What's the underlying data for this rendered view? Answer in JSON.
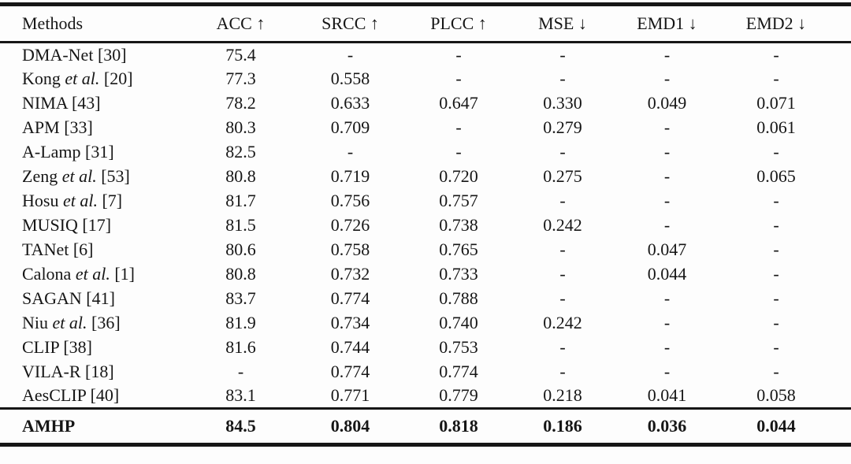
{
  "colors": {
    "ink": "#161616",
    "paper": "#fdfdfd"
  },
  "table": {
    "columns": [
      {
        "label": "Methods"
      },
      {
        "label": "ACC ↑"
      },
      {
        "label": "SRCC ↑"
      },
      {
        "label": "PLCC ↑"
      },
      {
        "label": "MSE ↓"
      },
      {
        "label": "EMD1 ↓"
      },
      {
        "label": "EMD2 ↓"
      }
    ],
    "rows": [
      {
        "method": {
          "pre": "DMA-Net",
          "italic": "",
          "post": " [30]"
        },
        "values": [
          "75.4",
          "-",
          "-",
          "-",
          "-",
          "-"
        ]
      },
      {
        "method": {
          "pre": "Kong ",
          "italic": "et al.",
          "post": " [20]"
        },
        "values": [
          "77.3",
          "0.558",
          "-",
          "-",
          "-",
          "-"
        ]
      },
      {
        "method": {
          "pre": "NIMA",
          "italic": "",
          "post": " [43]"
        },
        "values": [
          "78.2",
          "0.633",
          "0.647",
          "0.330",
          "0.049",
          "0.071"
        ]
      },
      {
        "method": {
          "pre": "APM",
          "italic": "",
          "post": " [33]"
        },
        "values": [
          "80.3",
          "0.709",
          "-",
          "0.279",
          "-",
          "0.061"
        ]
      },
      {
        "method": {
          "pre": "A-Lamp",
          "italic": "",
          "post": " [31]"
        },
        "values": [
          "82.5",
          "-",
          "-",
          "-",
          "-",
          "-"
        ]
      },
      {
        "method": {
          "pre": "Zeng ",
          "italic": "et al.",
          "post": " [53]"
        },
        "values": [
          "80.8",
          "0.719",
          "0.720",
          "0.275",
          "-",
          "0.065"
        ]
      },
      {
        "method": {
          "pre": "Hosu ",
          "italic": "et al.",
          "post": " [7]"
        },
        "values": [
          "81.7",
          "0.756",
          "0.757",
          "-",
          "-",
          "-"
        ]
      },
      {
        "method": {
          "pre": "MUSIQ",
          "italic": "",
          "post": " [17]"
        },
        "values": [
          "81.5",
          "0.726",
          "0.738",
          "0.242",
          "-",
          "-"
        ]
      },
      {
        "method": {
          "pre": "TANet",
          "italic": "",
          "post": " [6]"
        },
        "values": [
          "80.6",
          "0.758",
          "0.765",
          "-",
          "0.047",
          "-"
        ]
      },
      {
        "method": {
          "pre": "Calona ",
          "italic": "et al.",
          "post": " [1]"
        },
        "values": [
          "80.8",
          "0.732",
          "0.733",
          "-",
          "0.044",
          "-"
        ]
      },
      {
        "method": {
          "pre": "SAGAN",
          "italic": "",
          "post": " [41]"
        },
        "values": [
          "83.7",
          "0.774",
          "0.788",
          "-",
          "-",
          "-"
        ]
      },
      {
        "method": {
          "pre": "Niu ",
          "italic": "et al.",
          "post": " [36]"
        },
        "values": [
          "81.9",
          "0.734",
          "0.740",
          "0.242",
          "-",
          "-"
        ]
      },
      {
        "method": {
          "pre": "CLIP",
          "italic": "",
          "post": " [38]"
        },
        "values": [
          "81.6",
          "0.744",
          "0.753",
          "-",
          "-",
          "-"
        ]
      },
      {
        "method": {
          "pre": "VILA-R",
          "italic": "",
          "post": " [18]"
        },
        "values": [
          "-",
          "0.774",
          "0.774",
          "-",
          "-",
          "-"
        ]
      },
      {
        "method": {
          "pre": "AesCLIP",
          "italic": "",
          "post": " [40]"
        },
        "values": [
          "83.1",
          "0.771",
          "0.779",
          "0.218",
          "0.041",
          "0.058"
        ]
      }
    ],
    "footer_row": {
      "method": {
        "pre": "AMHP",
        "italic": "",
        "post": ""
      },
      "values": [
        "84.5",
        "0.804",
        "0.818",
        "0.186",
        "0.036",
        "0.044"
      ]
    }
  }
}
